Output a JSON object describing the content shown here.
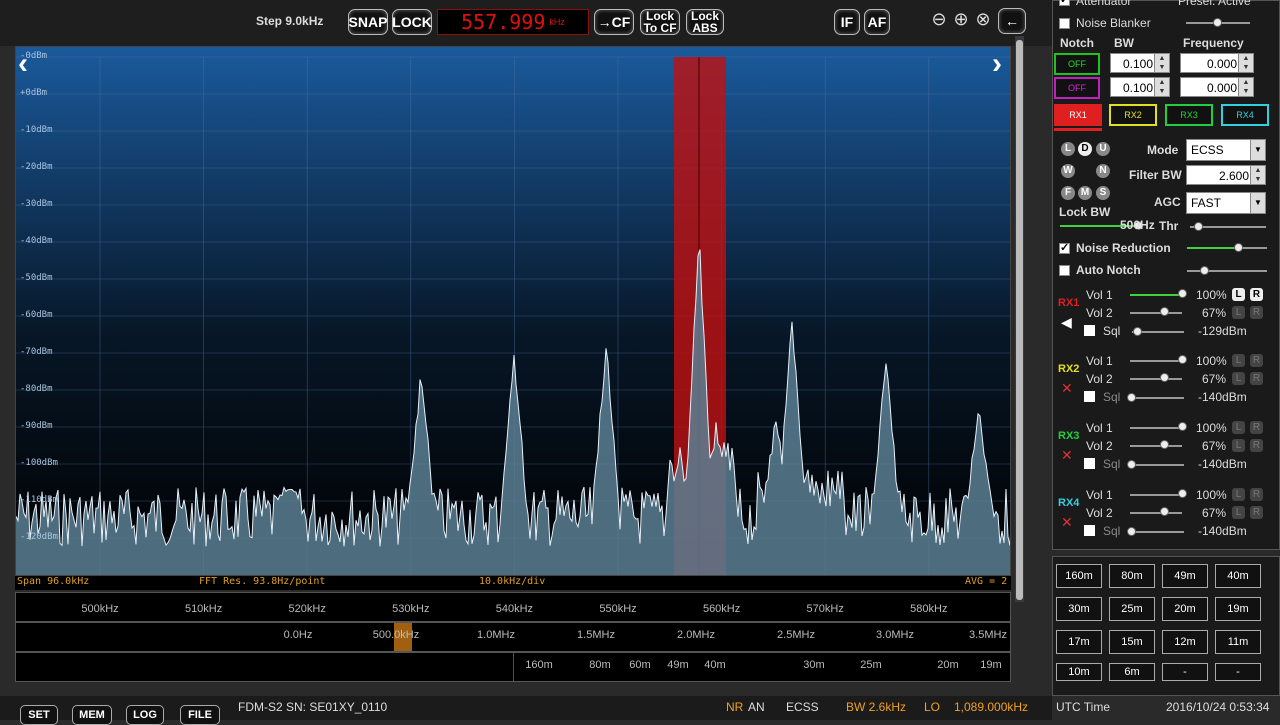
{
  "toolbar": {
    "step": "Step 9.0kHz",
    "snap": "SNAP",
    "lock": "LOCK",
    "frequency": "557.999",
    "frequency_unit": "kHz",
    "to_cf": "→CF",
    "lock_to_cf_1": "Lock",
    "lock_to_cf_2": "To CF",
    "lock_abs_1": "Lock",
    "lock_abs_2": "ABS",
    "if": "IF",
    "af": "AF"
  },
  "spectrum": {
    "db_labels": [
      "-0dBm",
      "+0dBm",
      "-10dBm",
      "-20dBm",
      "-30dBm",
      "-40dBm",
      "-50dBm",
      "-60dBm",
      "-70dBm",
      "-80dBm",
      "-90dBm",
      "-100dBm",
      "-110dBm",
      "-120dBm"
    ],
    "span": "Span 96.0kHz",
    "fft_res": "FFT Res. 93.8Hz/point",
    "div": "10.0kHz/div",
    "avg": "AVG = 2"
  },
  "freq_scale": [
    "500kHz",
    "510kHz",
    "520kHz",
    "530kHz",
    "540kHz",
    "550kHz",
    "560kHz",
    "570kHz",
    "580kHz"
  ],
  "lo_scale": [
    "0.0Hz",
    "500.0kHz",
    "1.0MHz",
    "1.5MHz",
    "2.0MHz",
    "2.5MHz",
    "3.0MHz",
    "3.5MHz"
  ],
  "meter_scale": [
    "160m",
    "80m",
    "60m",
    "49m",
    "40m",
    "30m",
    "25m",
    "20m",
    "19m"
  ],
  "bottom": {
    "set": "SET",
    "mem": "MEM",
    "log": "LOG",
    "file": "FILE",
    "device": "FDM-S2 SN: SE01XY_0110",
    "nr": "NR",
    "an": "AN",
    "mode": "ECSS",
    "bw": "BW 2.6kHz",
    "lo": "LO",
    "lo_value": "1,089.000kHz"
  },
  "panel": {
    "attenuator": "Attenuator",
    "presel": "Presel. Active",
    "noise_blanker": "Noise Blanker",
    "notch": "Notch",
    "bw": "BW",
    "frequency": "Frequency",
    "notch1_state": "OFF",
    "notch1_bw": "0.100",
    "notch1_freq": "0.000",
    "notch2_state": "OFF",
    "notch2_bw": "0.100",
    "notch2_freq": "0.000",
    "rx_tabs": [
      "RX1",
      "RX2",
      "RX3",
      "RX4"
    ],
    "mode_label": "Mode",
    "mode_value": "ECSS",
    "filter_bw_label": "Filter BW",
    "filter_bw_value": "2.600",
    "agc_label": "AGC",
    "agc_value": "FAST",
    "lock_bw": "Lock BW",
    "lock_bw_value": "500Hz",
    "thr": "Thr",
    "noise_reduction": "Noise Reduction",
    "auto_notch": "Auto Notch",
    "letters": [
      "L",
      "D",
      "U",
      "W",
      "N",
      "F",
      "M",
      "S"
    ],
    "receivers": [
      {
        "label": "RX1",
        "color": "#e02020",
        "vol1": "Vol 1",
        "vol1_value": "100%",
        "vol2": "Vol 2",
        "vol2_value": "67%",
        "sql": "Sql",
        "sql_value": "-129dBm"
      },
      {
        "label": "RX2",
        "color": "#e0e020",
        "vol1": "Vol 1",
        "vol1_value": "100%",
        "vol2": "Vol 2",
        "vol2_value": "67%",
        "sql": "Sql",
        "sql_value": "-140dBm"
      },
      {
        "label": "RX3",
        "color": "#20d040",
        "vol1": "Vol 1",
        "vol1_value": "100%",
        "vol2": "Vol 2",
        "vol2_value": "67%",
        "sql": "Sql",
        "sql_value": "-140dBm"
      },
      {
        "label": "RX4",
        "color": "#30d0e0",
        "vol1": "Vol 1",
        "vol1_value": "100%",
        "vol2": "Vol 2",
        "vol2_value": "67%",
        "sql": "Sql",
        "sql_value": "-140dBm"
      }
    ]
  },
  "bands": [
    "160m",
    "80m",
    "49m",
    "40m",
    "30m",
    "25m",
    "20m",
    "19m",
    "17m",
    "15m",
    "12m",
    "11m",
    "10m",
    "6m",
    "-",
    "-"
  ],
  "utc_label": "UTC Time",
  "utc_value": "2016/10/24 0:53:34"
}
